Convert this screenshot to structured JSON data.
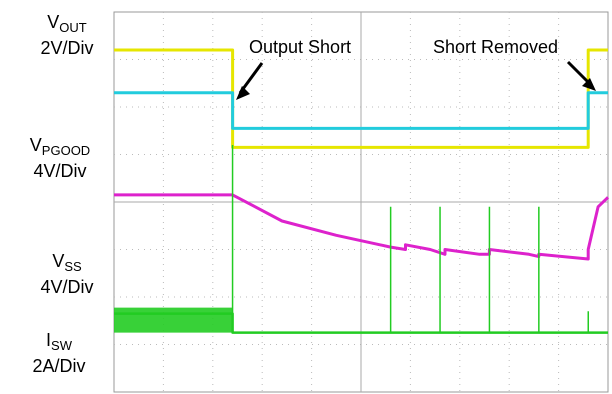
{
  "chart_data": {
    "type": "line",
    "title": "",
    "grid": true,
    "x": {
      "divisions": 10
    },
    "y": {
      "divisions": 8
    },
    "annotations": [
      "Output Short",
      "Short Removed"
    ],
    "series": [
      {
        "name": "VOUT",
        "scale": "2V/Div",
        "color": "#e6e600",
        "points": [
          [
            0.0,
            7.2
          ],
          [
            2.4,
            7.2
          ],
          [
            2.4,
            5.15
          ],
          [
            9.6,
            5.15
          ],
          [
            9.6,
            7.2
          ],
          [
            10.0,
            7.2
          ]
        ]
      },
      {
        "name": "VPGOOD",
        "scale": "4V/Div",
        "color": "#22ccdd",
        "points": [
          [
            0.0,
            6.3
          ],
          [
            2.4,
            6.3
          ],
          [
            2.4,
            5.55
          ],
          [
            9.6,
            5.55
          ],
          [
            9.6,
            6.3
          ],
          [
            10.0,
            6.3
          ]
        ]
      },
      {
        "name": "VSS",
        "scale": "4V/Div",
        "color": "#dd22cc",
        "points": [
          [
            0.0,
            4.15
          ],
          [
            2.4,
            4.15
          ],
          [
            3.4,
            3.6
          ],
          [
            4.5,
            3.3
          ],
          [
            5.6,
            3.05
          ],
          [
            5.9,
            3.0
          ],
          [
            5.9,
            3.1
          ],
          [
            6.4,
            3.0
          ],
          [
            6.7,
            2.9
          ],
          [
            6.7,
            3.0
          ],
          [
            7.4,
            2.9
          ],
          [
            7.6,
            2.9
          ],
          [
            7.6,
            3.0
          ],
          [
            8.4,
            2.9
          ],
          [
            8.6,
            2.85
          ],
          [
            8.6,
            2.9
          ],
          [
            9.6,
            2.8
          ],
          [
            9.6,
            3.0
          ],
          [
            9.8,
            3.9
          ],
          [
            10.0,
            4.1
          ]
        ]
      },
      {
        "name": "ISW",
        "scale": "2A/Div",
        "color": "#22cc22",
        "points": [
          [
            0.0,
            1.65
          ],
          [
            2.4,
            1.65
          ],
          [
            2.4,
            1.25
          ],
          [
            10.0,
            1.25
          ]
        ],
        "spikes": [
          [
            2.4,
            5.2
          ],
          [
            5.6,
            3.9
          ],
          [
            6.6,
            3.9
          ],
          [
            7.6,
            3.9
          ],
          [
            8.6,
            3.9
          ],
          [
            9.6,
            1.7
          ]
        ]
      }
    ]
  },
  "labels": {
    "vout": {
      "main": "V",
      "sub": "OUT",
      "scale": "2V/Div"
    },
    "vpgood": {
      "main": "V",
      "sub": "PGOOD",
      "scale": "4V/Div"
    },
    "vss": {
      "main": "V",
      "sub": "SS",
      "scale": "4V/Div"
    },
    "isw": {
      "main": "I",
      "sub": "SW",
      "scale": "2A/Div"
    }
  }
}
